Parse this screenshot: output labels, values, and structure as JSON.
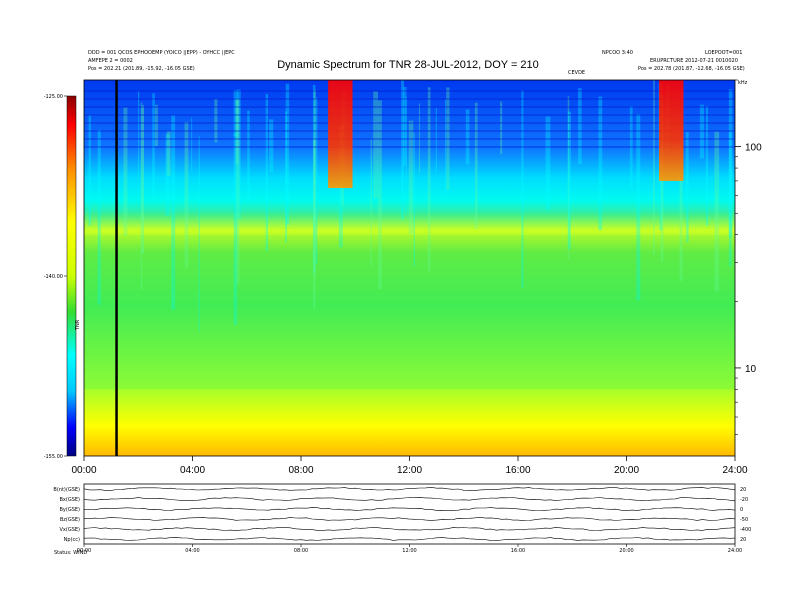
{
  "chart_data": {
    "type": "heatmap",
    "title": "Dynamic Spectrum for TNR 28-JUL-2012, DOY = 210",
    "header": {
      "left_line1": "DDD = 001 QCOS EPHOOEMP (YOICO ||EPP) - OYHCC ||EPC",
      "left_line2": "AMFEPE 2 = 0002",
      "left_line3": "Pos = 202.21 (201.89, -15.92, -16.05 GSE)",
      "right_line1": "LOEPOOT=001",
      "right_line2": "ERUPRCTURE 2012-07-21 0010020",
      "right_line3": "Pos = 202.78 (201.87, -12.68, -16.05 GSE)",
      "mid_right": "NPCOO 3:40",
      "marker": "CEVDE",
      "mhz_unit": "kHz"
    },
    "time_ticks": [
      "00:00",
      "04:00",
      "08:00",
      "12:00",
      "16:00",
      "20:00",
      "24:00"
    ],
    "time_range_hours": [
      0,
      24
    ],
    "frequency_axis": {
      "scale": "log",
      "range_khz": [
        4,
        200
      ],
      "ticks": [
        "100",
        "10"
      ]
    },
    "colorbar": {
      "ticks": [
        "-125.00",
        "-140.00",
        "-155.00"
      ],
      "range_db": [
        -155,
        -125
      ],
      "label": "TNR",
      "colors": [
        "#000080",
        "#0000ff",
        "#00c8ff",
        "#00ffff",
        "#33dd33",
        "#ccff00",
        "#ffff00",
        "#ff8c00",
        "#ff0000",
        "#8b0000"
      ]
    },
    "vertical_line_hour": 1.2,
    "bands": [
      {
        "level": "background-high",
        "color": "#00e0ff",
        "from_khz": 50,
        "to_khz": 200
      },
      {
        "level": "background-mid",
        "color": "#33dd55",
        "from_khz": 8,
        "to_khz": 40
      },
      {
        "level": "background-low",
        "color": "#ffff00",
        "from_khz": 4,
        "to_khz": 8
      }
    ],
    "bursts": [
      {
        "start_hour": 9.0,
        "end_hour": 9.9,
        "top_khz": 200,
        "bottom_khz": 65
      },
      {
        "start_hour": 21.2,
        "end_hour": 22.1,
        "top_khz": 200,
        "bottom_khz": 70
      }
    ],
    "bottom_panel": {
      "left_labels": [
        "B(nt)(GSE)",
        "Bx(GSE)",
        "By(GSE)",
        "Bz(GSE)",
        "Vx(GSE)",
        "Np(cc)"
      ],
      "right_labels": [
        "20",
        "-20",
        "0",
        "-50",
        "-400",
        "20"
      ],
      "time_ticks": [
        "00:00",
        "04:00",
        "08:00",
        "12:00",
        "16:00",
        "20:00",
        "24:00"
      ],
      "footer": "Status: WIND"
    }
  }
}
